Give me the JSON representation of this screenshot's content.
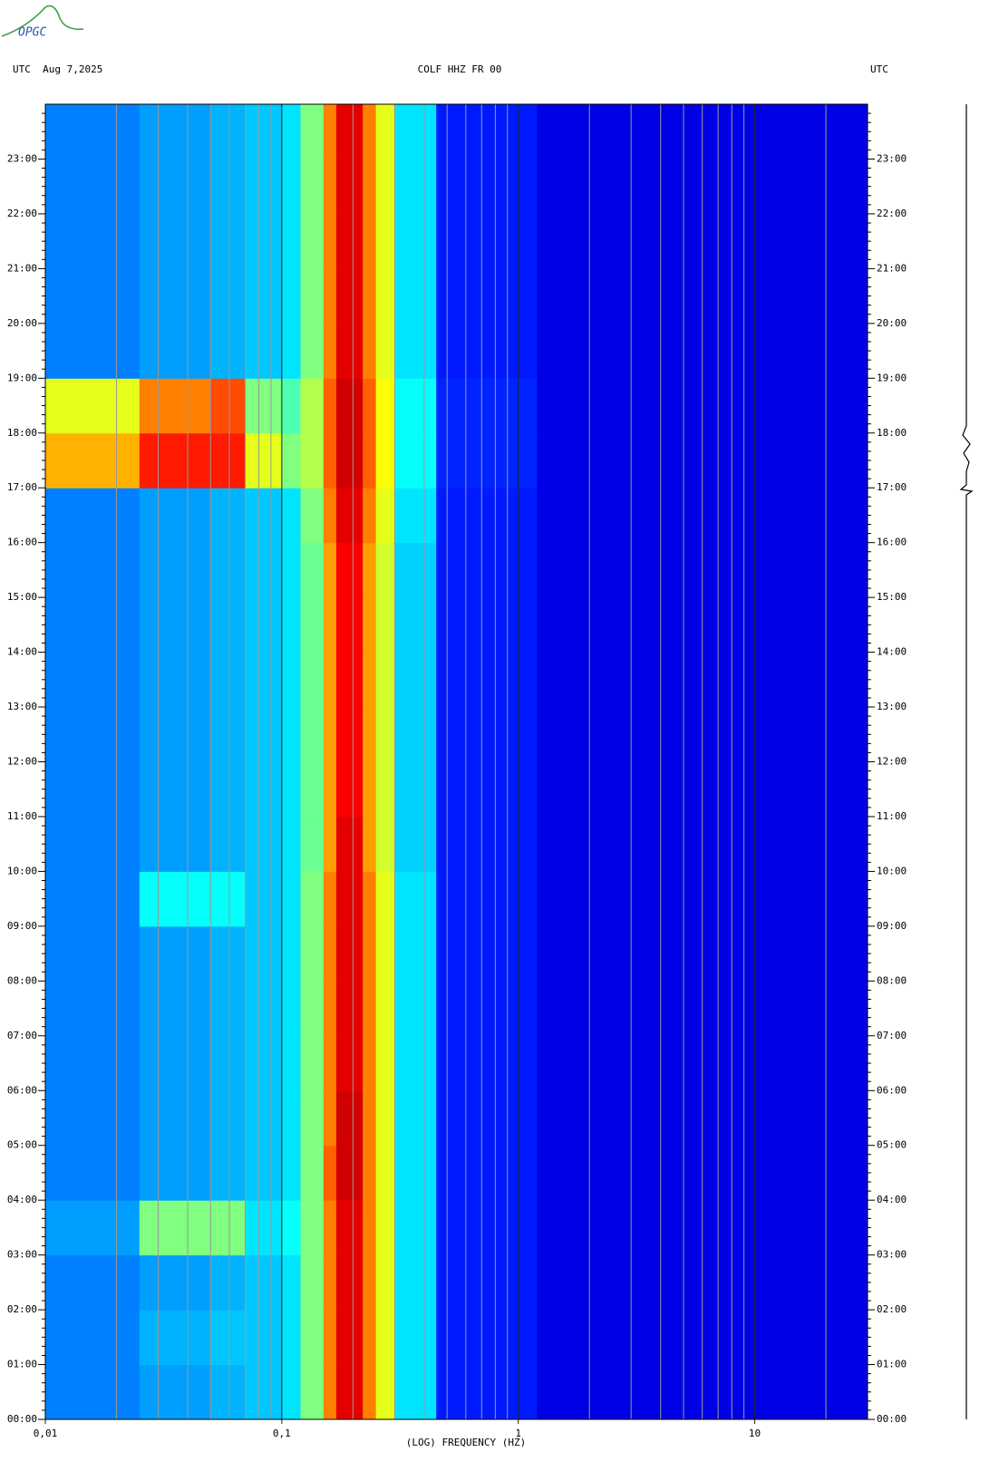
{
  "logo": "OPGC",
  "header": {
    "left": "UTC  Aug 7,2025",
    "center": "COLF HHZ FR 00",
    "right": "UTC"
  },
  "chart_data": {
    "type": "spectrogram",
    "x_label": "(LOG) FREQUENCY (HZ)",
    "x_log": true,
    "xlim": [
      0.01,
      30
    ],
    "xticks": [
      {
        "value": 0.01,
        "label": "0,01"
      },
      {
        "value": 0.1,
        "label": "0,1"
      },
      1,
      10
    ],
    "xgrid": [
      0.02,
      0.03,
      0.04,
      0.05,
      0.06,
      0.07,
      0.08,
      0.09,
      0.2,
      0.3,
      0.4,
      0.5,
      0.6,
      0.7,
      0.8,
      0.9,
      2,
      3,
      4,
      5,
      6,
      7,
      8,
      9,
      20
    ],
    "ylim": [
      0,
      24
    ],
    "yticks": [
      {
        "value": 0,
        "label": "00:00"
      },
      {
        "value": 1,
        "label": "01:00"
      },
      {
        "value": 2,
        "label": "02:00"
      },
      {
        "value": 3,
        "label": "03:00"
      },
      {
        "value": 4,
        "label": "04:00"
      },
      {
        "value": 5,
        "label": "05:00"
      },
      {
        "value": 6,
        "label": "06:00"
      },
      {
        "value": 7,
        "label": "07:00"
      },
      {
        "value": 8,
        "label": "08:00"
      },
      {
        "value": 9,
        "label": "09:00"
      },
      {
        "value": 10,
        "label": "10:00"
      },
      {
        "value": 11,
        "label": "11:00"
      },
      {
        "value": 12,
        "label": "12:00"
      },
      {
        "value": 13,
        "label": "13:00"
      },
      {
        "value": 14,
        "label": "14:00"
      },
      {
        "value": 15,
        "label": "15:00"
      },
      {
        "value": 16,
        "label": "16:00"
      },
      {
        "value": 17,
        "label": "17:00"
      },
      {
        "value": 18,
        "label": "18:00"
      },
      {
        "value": 19,
        "label": "19:00"
      },
      {
        "value": 20,
        "label": "20:00"
      },
      {
        "value": 21,
        "label": "21:00"
      },
      {
        "value": 22,
        "label": "22:00"
      },
      {
        "value": 23,
        "label": "23:00"
      }
    ],
    "freq_edges": [
      0.01,
      0.025,
      0.05,
      0.07,
      0.1,
      0.12,
      0.15,
      0.17,
      0.22,
      0.25,
      0.3,
      0.45,
      1.2,
      30
    ],
    "hours": [
      0,
      1,
      2,
      3,
      4,
      5,
      6,
      7,
      8,
      9,
      10,
      11,
      12,
      13,
      14,
      15,
      16,
      17,
      18,
      19,
      20,
      21,
      22,
      23
    ],
    "zlim": [
      0,
      1
    ],
    "levels": [
      [
        0.25,
        0.28,
        0.3,
        0.32,
        0.35,
        0.5,
        0.75,
        0.9,
        0.75,
        0.6,
        0.35,
        0.15,
        0.1
      ],
      [
        0.25,
        0.3,
        0.32,
        0.32,
        0.35,
        0.5,
        0.75,
        0.9,
        0.75,
        0.6,
        0.35,
        0.15,
        0.1
      ],
      [
        0.25,
        0.28,
        0.3,
        0.32,
        0.35,
        0.5,
        0.75,
        0.9,
        0.75,
        0.6,
        0.35,
        0.15,
        0.1
      ],
      [
        0.28,
        0.5,
        0.5,
        0.35,
        0.38,
        0.5,
        0.75,
        0.9,
        0.75,
        0.6,
        0.35,
        0.15,
        0.1
      ],
      [
        0.25,
        0.28,
        0.3,
        0.32,
        0.35,
        0.5,
        0.78,
        0.92,
        0.75,
        0.6,
        0.35,
        0.15,
        0.1
      ],
      [
        0.25,
        0.28,
        0.3,
        0.32,
        0.35,
        0.5,
        0.75,
        0.92,
        0.75,
        0.6,
        0.35,
        0.15,
        0.1
      ],
      [
        0.25,
        0.28,
        0.3,
        0.32,
        0.35,
        0.5,
        0.75,
        0.9,
        0.75,
        0.6,
        0.35,
        0.15,
        0.1
      ],
      [
        0.25,
        0.28,
        0.3,
        0.32,
        0.35,
        0.5,
        0.75,
        0.9,
        0.75,
        0.6,
        0.35,
        0.15,
        0.1
      ],
      [
        0.25,
        0.28,
        0.3,
        0.32,
        0.35,
        0.5,
        0.75,
        0.9,
        0.75,
        0.6,
        0.35,
        0.15,
        0.1
      ],
      [
        0.25,
        0.38,
        0.38,
        0.32,
        0.35,
        0.5,
        0.75,
        0.9,
        0.75,
        0.6,
        0.35,
        0.15,
        0.1
      ],
      [
        0.25,
        0.28,
        0.3,
        0.32,
        0.35,
        0.48,
        0.72,
        0.9,
        0.72,
        0.58,
        0.33,
        0.15,
        0.1
      ],
      [
        0.25,
        0.28,
        0.3,
        0.32,
        0.35,
        0.48,
        0.72,
        0.88,
        0.72,
        0.58,
        0.33,
        0.15,
        0.1
      ],
      [
        0.25,
        0.28,
        0.3,
        0.32,
        0.35,
        0.48,
        0.72,
        0.88,
        0.72,
        0.58,
        0.33,
        0.15,
        0.1
      ],
      [
        0.25,
        0.28,
        0.3,
        0.32,
        0.35,
        0.48,
        0.72,
        0.88,
        0.72,
        0.58,
        0.33,
        0.15,
        0.1
      ],
      [
        0.25,
        0.28,
        0.3,
        0.32,
        0.35,
        0.48,
        0.72,
        0.88,
        0.72,
        0.58,
        0.33,
        0.15,
        0.1
      ],
      [
        0.25,
        0.28,
        0.3,
        0.32,
        0.35,
        0.48,
        0.72,
        0.88,
        0.72,
        0.58,
        0.33,
        0.15,
        0.1
      ],
      [
        0.25,
        0.28,
        0.3,
        0.32,
        0.35,
        0.5,
        0.75,
        0.9,
        0.75,
        0.6,
        0.35,
        0.15,
        0.1
      ],
      [
        0.7,
        0.85,
        0.85,
        0.6,
        0.5,
        0.55,
        0.78,
        0.92,
        0.78,
        0.62,
        0.38,
        0.16,
        0.1
      ],
      [
        0.6,
        0.75,
        0.8,
        0.5,
        0.45,
        0.55,
        0.78,
        0.92,
        0.78,
        0.62,
        0.38,
        0.16,
        0.1
      ],
      [
        0.25,
        0.28,
        0.3,
        0.32,
        0.35,
        0.5,
        0.75,
        0.9,
        0.75,
        0.6,
        0.35,
        0.15,
        0.1
      ],
      [
        0.25,
        0.28,
        0.3,
        0.32,
        0.35,
        0.5,
        0.75,
        0.9,
        0.75,
        0.6,
        0.35,
        0.15,
        0.1
      ],
      [
        0.25,
        0.28,
        0.3,
        0.32,
        0.35,
        0.5,
        0.75,
        0.9,
        0.75,
        0.6,
        0.35,
        0.15,
        0.1
      ],
      [
        0.25,
        0.28,
        0.3,
        0.32,
        0.35,
        0.5,
        0.75,
        0.9,
        0.75,
        0.6,
        0.35,
        0.15,
        0.1
      ],
      [
        0.25,
        0.28,
        0.3,
        0.32,
        0.35,
        0.5,
        0.75,
        0.9,
        0.75,
        0.6,
        0.35,
        0.15,
        0.1
      ]
    ]
  }
}
